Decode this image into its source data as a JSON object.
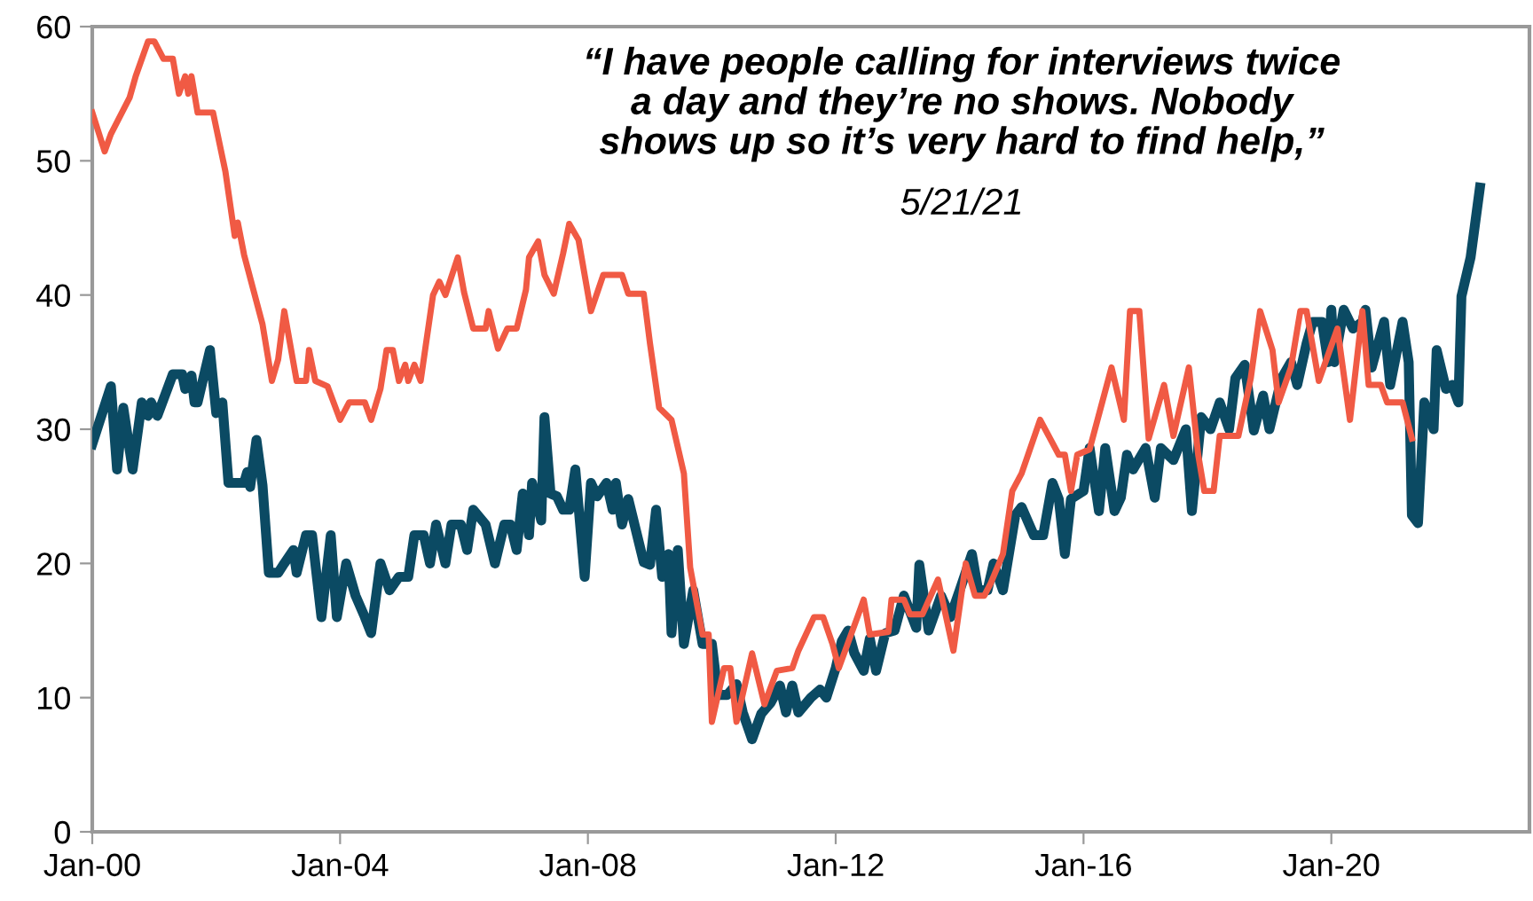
{
  "chart_data": {
    "type": "line",
    "xlim": [
      "2000-01-01",
      "2023-03-14"
    ],
    "ylim": [
      0,
      60
    ],
    "xticks": [
      {
        "value": "2000-01-01",
        "label": "Jan-00"
      },
      {
        "value": "2004-01-01",
        "label": "Jan-04"
      },
      {
        "value": "2008-01-01",
        "label": "Jan-08"
      },
      {
        "value": "2012-01-01",
        "label": "Jan-12"
      },
      {
        "value": "2016-01-01",
        "label": "Jan-16"
      },
      {
        "value": "2020-01-01",
        "label": "Jan-20"
      }
    ],
    "yticks": [
      0,
      10,
      20,
      30,
      40,
      50,
      60
    ],
    "marker": "none",
    "line_style": "solid",
    "annotations": [
      "“I have people calling for interviews twice\na day and they’re no shows. Nobody\nshows up so it’s very hard to find help,”",
      "5/21/21"
    ],
    "series": [
      {
        "color": "#f05a44",
        "x": [
          "2000-01-01",
          "2000-03-14",
          "2000-04-20",
          "2000-08-08",
          "2000-09-13",
          "2000-11-25",
          "2001-01-01",
          "2001-02-24",
          "2001-04-20",
          "2001-05-26",
          "2001-07-02",
          "2001-07-20",
          "2001-08-08",
          "2001-09-13",
          "2001-12-13",
          "2002-02-24",
          "2002-04-20",
          "2002-05-08",
          "2002-06-14",
          "2002-10-01",
          "2002-11-25",
          "2003-01-01",
          "2003-02-06",
          "2003-04-20",
          "2003-06-14",
          "2003-07-02",
          "2003-08-08",
          "2003-10-19",
          "2004-01-01",
          "2004-02-24",
          "2004-05-26",
          "2004-07-02",
          "2004-08-26",
          "2004-10-01",
          "2004-11-07",
          "2004-12-13",
          "2005-01-19",
          "2005-02-06",
          "2005-03-14",
          "2005-04-20",
          "2005-07-02",
          "2005-08-08",
          "2005-09-13",
          "2005-11-25",
          "2006-01-01",
          "2006-02-24",
          "2006-05-08",
          "2006-05-26",
          "2006-07-20",
          "2006-09-13",
          "2006-11-07",
          "2007-01-01",
          "2007-01-19",
          "2007-03-14",
          "2007-04-20",
          "2007-06-14",
          "2007-08-08",
          "2007-09-13",
          "2007-11-07",
          "2008-01-19",
          "2008-04-01",
          "2008-07-20",
          "2008-08-26",
          "2008-11-25",
          "2009-01-01",
          "2009-02-24",
          "2009-05-08",
          "2009-07-20",
          "2009-08-26",
          "2009-11-07",
          "2009-12-13",
          "2010-01-01",
          "2010-03-14",
          "2010-04-20",
          "2010-05-26",
          "2010-08-26",
          "2010-11-07",
          "2011-01-19",
          "2011-04-20",
          "2011-05-26",
          "2011-08-26",
          "2011-10-19",
          "2011-12-13",
          "2012-01-19",
          "2012-05-08",
          "2012-06-14",
          "2012-07-20",
          "2012-11-07",
          "2012-11-25",
          "2013-02-06",
          "2013-03-14",
          "2013-05-26",
          "2013-08-26",
          "2013-11-25",
          "2014-02-06",
          "2014-04-01",
          "2014-05-26",
          "2014-07-02",
          "2014-09-13",
          "2014-11-07",
          "2015-01-01",
          "2015-04-20",
          "2015-08-08",
          "2015-09-13",
          "2015-10-19",
          "2015-11-25",
          "2016-02-06",
          "2016-04-20",
          "2016-06-14",
          "2016-08-26",
          "2016-10-01",
          "2016-11-25",
          "2017-01-19",
          "2017-04-20",
          "2017-06-14",
          "2017-09-13",
          "2017-11-07",
          "2017-12-13",
          "2018-02-06",
          "2018-03-14",
          "2018-07-02",
          "2018-09-13",
          "2018-11-07",
          "2019-01-19",
          "2019-02-24",
          "2019-05-08",
          "2019-07-02",
          "2019-08-08",
          "2019-10-19",
          "2020-02-06",
          "2020-04-20",
          "2020-07-02",
          "2020-08-08",
          "2020-10-19",
          "2020-11-25",
          "2021-02-24",
          "2021-04-20"
        ],
        "values": [
          53.6,
          50.7,
          52,
          54.7,
          56.3,
          58.9,
          58.9,
          57.6,
          57.6,
          55,
          56.3,
          55,
          56.3,
          53.6,
          53.6,
          49.2,
          44.4,
          45.4,
          43,
          37.8,
          33.6,
          35.2,
          38.8,
          33.6,
          33.6,
          35.9,
          33.6,
          33.2,
          30.7,
          32,
          32,
          30.7,
          33,
          35.9,
          35.9,
          33.6,
          34.8,
          33.6,
          34.8,
          33.6,
          40,
          41,
          40,
          42.8,
          40.2,
          37.5,
          37.5,
          38.8,
          36,
          37.5,
          37.5,
          40.4,
          42.8,
          44,
          41.5,
          40.1,
          43.1,
          45.3,
          44.1,
          38.8,
          41.5,
          41.5,
          40.1,
          40.1,
          36.4,
          31.6,
          30.7,
          26.7,
          19.7,
          14.7,
          14.7,
          8.2,
          12.2,
          12.2,
          8.2,
          13.3,
          9.5,
          12,
          12.2,
          13.5,
          16,
          16,
          14,
          12.2,
          16,
          17.3,
          14.7,
          14.9,
          17.3,
          17.3,
          16.2,
          16.2,
          18.8,
          13.5,
          20,
          17.6,
          17.6,
          18.5,
          20.7,
          25.4,
          26.7,
          30.7,
          28.1,
          28.1,
          25.4,
          28.1,
          28.5,
          32,
          34.6,
          30.7,
          38.8,
          38.8,
          29.3,
          33.3,
          29.5,
          34.6,
          28.1,
          25.4,
          25.4,
          29.5,
          29.5,
          33.8,
          38.8,
          35.9,
          32,
          34.6,
          38.8,
          38.8,
          33.6,
          37.5,
          30.7,
          38.8,
          33.3,
          33.3,
          32,
          32,
          29.3
        ]
      },
      {
        "color": "#0b4a63",
        "x": [
          "2000-01-01",
          "2000-04-20",
          "2000-05-26",
          "2000-07-02",
          "2000-08-26",
          "2000-10-19",
          "2000-11-25",
          "2000-12-13",
          "2001-01-19",
          "2001-04-20",
          "2001-06-14",
          "2001-07-02",
          "2001-08-08",
          "2001-08-26",
          "2001-09-13",
          "2001-11-25",
          "2002-01-01",
          "2002-02-06",
          "2002-03-14",
          "2002-06-14",
          "2002-07-02",
          "2002-07-20",
          "2002-08-26",
          "2002-10-01",
          "2002-11-07",
          "2003-01-01",
          "2003-02-06",
          "2003-04-01",
          "2003-04-20",
          "2003-06-14",
          "2003-07-20",
          "2003-09-13",
          "2003-11-07",
          "2003-12-13",
          "2004-02-06",
          "2004-04-01",
          "2004-05-26",
          "2004-07-02",
          "2004-08-26",
          "2004-10-19",
          "2004-12-13",
          "2005-02-06",
          "2005-03-14",
          "2005-05-08",
          "2005-06-14",
          "2005-07-20",
          "2005-09-13",
          "2005-10-19",
          "2005-12-13",
          "2006-01-19",
          "2006-02-24",
          "2006-05-08",
          "2006-07-02",
          "2006-08-26",
          "2006-10-01",
          "2006-11-07",
          "2006-12-13",
          "2007-01-19",
          "2007-02-06",
          "2007-04-01",
          "2007-04-20",
          "2007-05-26",
          "2007-07-02",
          "2007-08-08",
          "2007-09-13",
          "2007-10-19",
          "2007-12-13",
          "2008-01-19",
          "2008-02-24",
          "2008-04-20",
          "2008-05-26",
          "2008-06-14",
          "2008-07-20",
          "2008-08-26",
          "2008-11-25",
          "2009-01-01",
          "2009-02-06",
          "2009-03-14",
          "2009-04-20",
          "2009-05-08",
          "2009-06-14",
          "2009-07-20",
          "2009-09-13",
          "2009-11-07",
          "2010-01-01",
          "2010-02-06",
          "2010-04-01",
          "2010-05-26",
          "2010-07-02",
          "2010-08-26",
          "2010-10-19",
          "2010-12-13",
          "2011-02-06",
          "2011-03-14",
          "2011-04-20",
          "2011-05-26",
          "2011-08-08",
          "2011-10-01",
          "2011-11-07",
          "2012-01-01",
          "2012-02-06",
          "2012-03-14",
          "2012-04-20",
          "2012-06-14",
          "2012-07-20",
          "2012-08-26",
          "2012-10-19",
          "2012-12-13",
          "2013-02-06",
          "2013-04-20",
          "2013-05-08",
          "2013-07-02",
          "2013-09-13",
          "2013-11-07",
          "2014-01-01",
          "2014-03-14",
          "2014-04-20",
          "2014-06-14",
          "2014-07-20",
          "2014-09-13",
          "2014-11-25",
          "2015-01-01",
          "2015-03-14",
          "2015-05-08",
          "2015-07-02",
          "2015-08-08",
          "2015-09-13",
          "2015-10-19",
          "2016-01-01",
          "2016-02-06",
          "2016-04-01",
          "2016-05-08",
          "2016-07-02",
          "2016-08-08",
          "2016-09-13",
          "2016-10-19",
          "2017-01-01",
          "2017-02-24",
          "2017-04-01",
          "2017-06-14",
          "2017-08-26",
          "2017-10-01",
          "2017-11-25",
          "2018-01-19",
          "2018-03-14",
          "2018-05-08",
          "2018-06-14",
          "2018-08-08",
          "2018-10-01",
          "2018-11-25",
          "2019-01-01",
          "2019-03-14",
          "2019-05-08",
          "2019-06-14",
          "2019-08-08",
          "2019-09-13",
          "2019-11-07",
          "2019-12-13",
          "2020-01-01",
          "2020-01-19",
          "2020-03-14",
          "2020-05-08",
          "2020-07-02",
          "2020-07-20",
          "2020-08-26",
          "2020-11-07",
          "2020-12-13",
          "2021-02-24",
          "2021-04-01",
          "2021-04-20",
          "2021-05-26",
          "2021-07-02",
          "2021-08-26",
          "2021-09-13",
          "2021-11-07",
          "2021-12-13",
          "2022-01-19",
          "2022-02-06",
          "2022-04-01",
          "2022-05-26"
        ],
        "values": [
          28.9,
          33.2,
          27,
          31.6,
          27,
          32,
          31,
          32,
          31,
          34.1,
          34.1,
          33,
          34,
          32,
          32,
          35.9,
          31.2,
          32,
          26,
          26,
          26.8,
          25.7,
          29.2,
          25.8,
          19.3,
          19.3,
          20,
          21,
          19.3,
          22.1,
          22.1,
          16,
          22.1,
          16,
          20,
          17.6,
          16,
          14.8,
          20,
          18,
          19,
          19,
          22.1,
          22.1,
          20,
          22.9,
          20,
          22.9,
          22.9,
          21,
          24,
          22.9,
          20,
          22.9,
          22.9,
          21,
          25.2,
          22.1,
          26,
          23.2,
          30.9,
          25.2,
          25,
          24,
          24,
          27,
          19,
          26,
          25,
          26,
          24,
          26,
          22.9,
          24.8,
          20.1,
          19.9,
          24,
          19,
          20.7,
          14.8,
          21,
          14,
          18,
          14,
          14,
          10.2,
          10.2,
          11,
          8.9,
          6.9,
          8.8,
          9.6,
          10.9,
          8.9,
          10.9,
          8.9,
          10,
          10.6,
          10,
          12.2,
          14.2,
          15,
          13.3,
          12,
          14.4,
          12,
          14.8,
          15,
          17.6,
          15.2,
          19.9,
          15,
          17.6,
          16,
          18,
          20.7,
          18,
          18,
          20,
          18,
          23.6,
          24.2,
          22.1,
          22.1,
          26,
          24.8,
          20.7,
          24.8,
          25.4,
          28.6,
          23.9,
          28.6,
          23.9,
          24.9,
          28.1,
          27,
          28.6,
          24.9,
          28.6,
          27.7,
          30,
          23.9,
          30.9,
          30,
          32,
          30,
          33.8,
          34.8,
          29.9,
          32.5,
          30,
          33.8,
          35,
          33.3,
          36.4,
          38,
          38,
          35,
          38.9,
          35,
          38.9,
          37.5,
          38,
          38.9,
          34.6,
          38,
          33.3,
          38,
          35,
          23.6,
          23,
          32,
          30,
          35.9,
          33,
          33.3,
          32,
          39.9,
          42.8,
          48
        ]
      }
    ]
  }
}
